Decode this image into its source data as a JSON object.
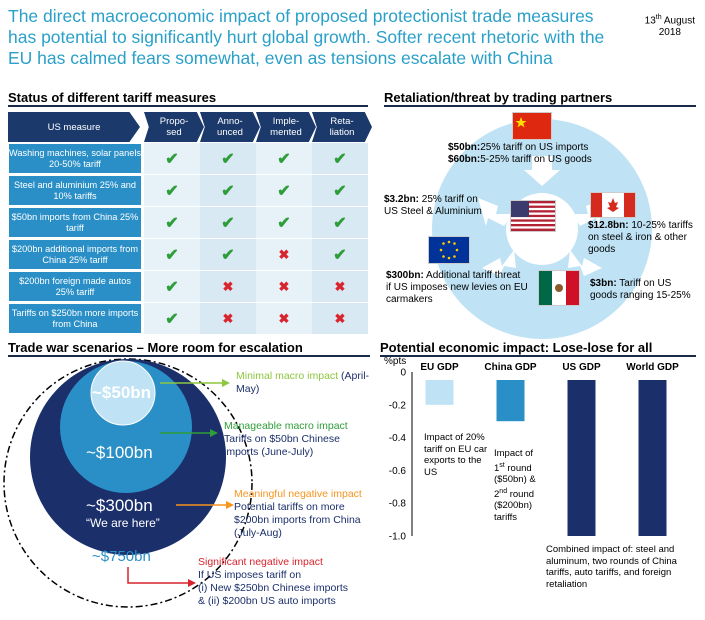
{
  "headline": "The direct macroeconomic impact of proposed protectionist trade measures has potential to significantly hurt global growth. Softer recent rhetoric with the EU has calmed fears somewhat, even as tensions escalate with China",
  "date_day": "13",
  "date_sup": "th",
  "date_rest": " August",
  "date_year": "2018",
  "tariff": {
    "title": "Status of different tariff measures",
    "headers": [
      "US measure",
      "Propo-\nsed",
      "Anno-\nunced",
      "Imple-\nmented",
      "Reta-\nliation"
    ],
    "rows": [
      {
        "label": "Washing machines, solar panels  20-50% tariff",
        "marks": [
          "check",
          "check",
          "check",
          "check"
        ]
      },
      {
        "label": "Steel and aluminium 25% and 10% tariffs",
        "marks": [
          "check",
          "check",
          "check",
          "check"
        ]
      },
      {
        "label": "$50bn imports from China 25% tariff",
        "marks": [
          "check",
          "check",
          "check",
          "check"
        ]
      },
      {
        "label": "$200bn additional imports from China  25% tariff",
        "marks": [
          "check",
          "check",
          "cross",
          "check"
        ]
      },
      {
        "label": "$200bn foreign made autos 25% tariff",
        "marks": [
          "check",
          "cross",
          "cross",
          "cross"
        ]
      },
      {
        "label": "Tariffs on $250bn more imports from China",
        "marks": [
          "check",
          "cross",
          "cross",
          "cross"
        ]
      }
    ]
  },
  "retaliation": {
    "title": "Retaliation/threat by trading partners",
    "china_bold1": "$50bn:",
    "china_text1": "25% tariff on US imports",
    "china_bold2": "$60bn:",
    "china_text2": "5-25% tariff on US goods",
    "steel_bold": "$3.2bn:",
    "steel_text": " 25% tariff on US Steel & Aluminium",
    "canada_bold": "$12.8bn:",
    "canada_text": " 10-25% tariffs  on steel & iron & other goods",
    "eu_bold": "$300bn:",
    "eu_text": " Additional tariff threat if US imposes new levies on EU carmakers",
    "mexico_bold": "$3bn:",
    "mexico_text": " Tariff on US goods ranging 15-25%"
  },
  "scenarios": {
    "title": "Trade war scenarios – More room for escalation",
    "c50": "~$50bn",
    "c100": "~$100bn",
    "c300": "~$300bn",
    "c300_sub": "“We are here”",
    "c750": "~$750bn",
    "a1_head": "Minimal macro impact",
    "a1_tail": " (April-May)",
    "a2_head": "Manageable macro impact",
    "a2_tail": " Tariffs on $50bn Chinese imports (June-July)",
    "a3_head": "Meaningful negative impact",
    "a3_tail": " Potential tariffs on more $200bn imports from China (July-Aug)",
    "a4_head": "Significant negative impact",
    "a4_l1": "If US imposes tariff on",
    "a4_l2": "(i) New $250bn Chinese imports",
    "a4_l3": "& (ii) $200bn US auto imports",
    "colors": {
      "c750": "#ffffff",
      "c300": "#1b2f6b",
      "c100": "#2a8fc6",
      "c50": "#bfe3f5",
      "green_light": "#8dc63f",
      "green": "#2e9e3a",
      "orange": "#f7941d",
      "red": "#d9232d"
    }
  },
  "chart_data": {
    "type": "bar",
    "title": "Potential economic impact: Lose-lose for all",
    "ylabel": "%pts",
    "categories": [
      "EU GDP",
      "China GDP",
      "US GDP",
      "World GDP"
    ],
    "values": [
      -0.2,
      -0.3,
      -1.0,
      -1.0
    ],
    "colors": [
      "#bfe3f5",
      "#2a8fc6",
      "#1b2f6b",
      "#1b2f6b"
    ],
    "ylim": [
      -1.0,
      0
    ],
    "yticks": [
      "0",
      "-0.2",
      "-0.4",
      "-0.6",
      "-0.8",
      "-1.0"
    ],
    "ytick_values": [
      0,
      -0.2,
      -0.4,
      -0.6,
      -0.8,
      -1.0
    ],
    "annotations": {
      "eu": "Impact of 20% tariff on EU car exports to the US",
      "china_l1": "Impact of",
      "china_l2_pre": "1",
      "china_l2_sup": "st",
      "china_l2_post": " round",
      "china_l3": "($50bn) &",
      "china_l4_pre": "2",
      "china_l4_sup": "nd",
      "china_l4_post": " round",
      "china_l5": "($200bn)",
      "china_l6": "tariffs",
      "combined": "Combined impact of: steel and aluminum, two rounds of China tariffs, auto tariffs, and foreign retaliation"
    }
  }
}
